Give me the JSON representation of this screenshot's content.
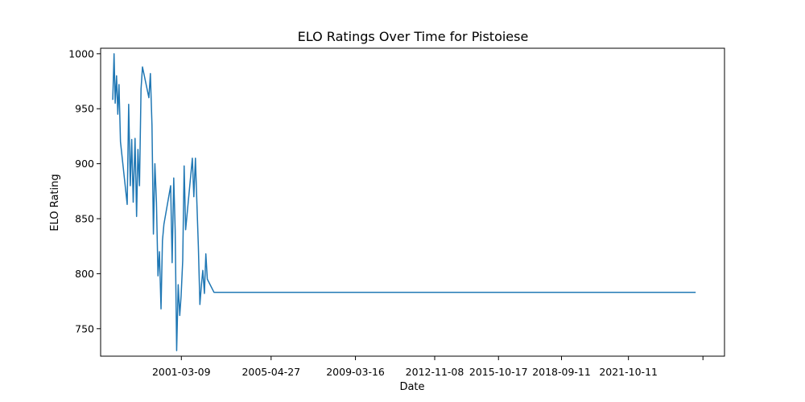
{
  "chart_data": {
    "type": "line",
    "title": "ELO Ratings Over Time for Pistoiese",
    "xlabel": "Date",
    "ylabel": "ELO Rating",
    "x_tick_labels": [
      "2001-03-09",
      "2005-04-27",
      "2009-03-16",
      "2012-11-08",
      "2015-10-17",
      "2018-09-11",
      "2021-10-11",
      ""
    ],
    "y_ticks": [
      750,
      800,
      850,
      900,
      950,
      1000
    ],
    "ylim": [
      725,
      1005
    ],
    "xlim": [
      "1997-06-20",
      "2026-03-15"
    ],
    "grid": false,
    "color": "#1f77b4",
    "series": [
      {
        "x": [
          "1998-01-10",
          "1998-02-01",
          "1998-02-20",
          "1998-03-15",
          "1998-04-05",
          "1998-04-25",
          "1998-05-20",
          "1998-09-10",
          "1998-10-05",
          "1998-11-01",
          "1998-11-25",
          "1998-12-20",
          "1999-01-20",
          "1999-02-15",
          "1999-03-10",
          "1999-04-05",
          "1999-05-01",
          "1999-05-25",
          "1999-09-10",
          "1999-10-05",
          "1999-11-01",
          "1999-11-25",
          "1999-12-20",
          "2000-01-15",
          "2000-02-10",
          "2000-03-05",
          "2000-04-01",
          "2000-04-25",
          "2000-05-20",
          "2000-09-10",
          "2000-10-05",
          "2000-11-01",
          "2000-11-25",
          "2000-12-20",
          "2001-01-15",
          "2001-02-10",
          "2001-03-05",
          "2001-04-01",
          "2001-04-25",
          "2001-05-20",
          "2001-09-10",
          "2001-10-05",
          "2001-11-01",
          "2001-11-25",
          "2001-12-20",
          "2002-01-15",
          "2002-02-10",
          "2002-03-05",
          "2002-04-01",
          "2002-04-25",
          "2002-05-20",
          "2002-09-10",
          "2002-10-05",
          "2002-11-01",
          "2002-11-25",
          "2002-12-20",
          "2003-01-15",
          "2003-02-10",
          "2003-03-05",
          "2003-04-01",
          "2003-04-25",
          "2003-05-20",
          "2003-06-15",
          "2024-11-15"
        ],
        "y": [
          958,
          1000,
          955,
          980,
          945,
          972,
          920,
          863,
          954,
          880,
          922,
          865,
          923,
          852,
          913,
          880,
          968,
          988,
          960,
          982,
          935,
          836,
          900,
          865,
          798,
          820,
          768,
          830,
          845,
          880,
          810,
          887,
          840,
          730,
          790,
          762,
          780,
          812,
          898,
          840,
          905,
          870,
          905,
          865,
          825,
          772,
          790,
          803,
          782,
          818,
          795,
          783,
          783,
          783,
          783,
          783,
          783,
          783,
          783,
          783,
          783,
          783,
          783,
          783
        ]
      }
    ]
  }
}
